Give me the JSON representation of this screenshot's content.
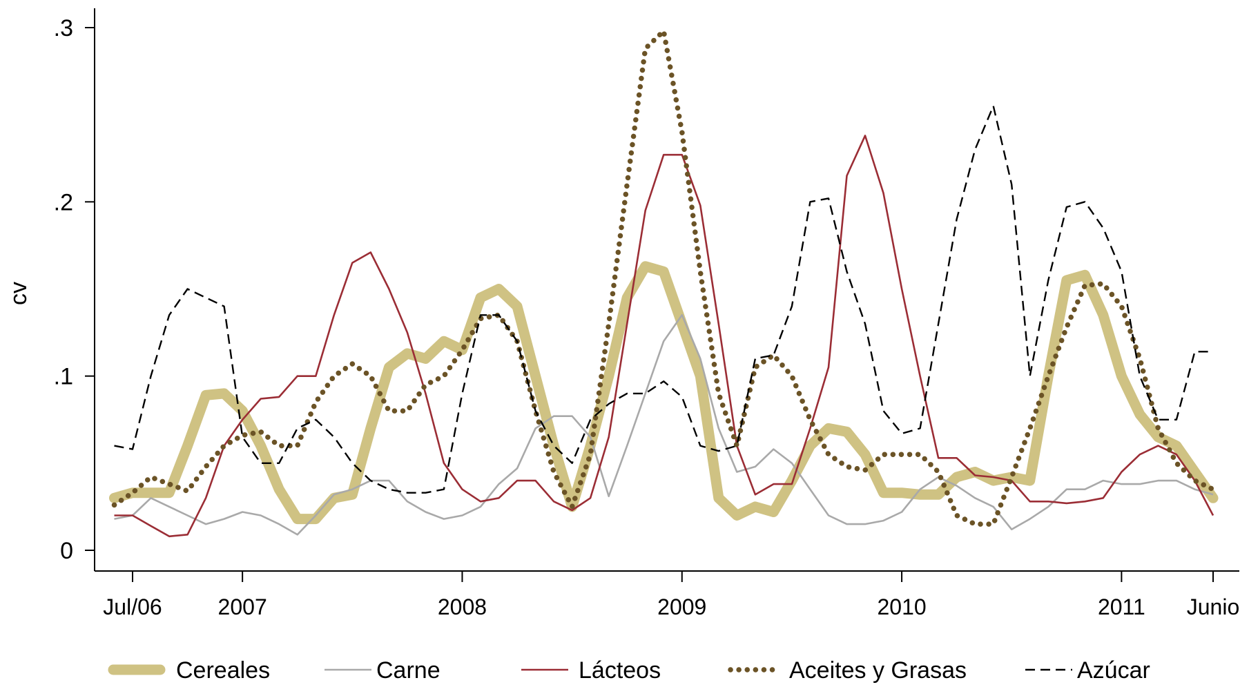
{
  "chart_data": {
    "type": "line",
    "ylabel": "cv",
    "xlabel": "",
    "ylim": [
      0,
      0.3
    ],
    "yticks": [
      {
        "value": 0,
        "label": "0"
      },
      {
        "value": 0.1,
        "label": ".1"
      },
      {
        "value": 0.2,
        "label": ".2"
      },
      {
        "value": 0.3,
        "label": ".3"
      }
    ],
    "xticks": [
      {
        "value": 0,
        "label": "Jul/06"
      },
      {
        "value": 6,
        "label": "2007"
      },
      {
        "value": 18,
        "label": "2008"
      },
      {
        "value": 30,
        "label": "2009"
      },
      {
        "value": 42,
        "label": "2010"
      },
      {
        "value": 54,
        "label": "2011"
      },
      {
        "value": 59,
        "label": "Junio"
      }
    ],
    "xrange": [
      -2,
      61
    ],
    "legend_position": "bottom",
    "grid": false,
    "series": [
      {
        "name": "Cereales",
        "style": "thick",
        "color": "#CFC283",
        "x": [
          -1,
          0,
          1,
          2,
          3,
          4,
          5,
          6,
          7,
          8,
          9,
          10,
          11,
          12,
          13,
          14,
          15,
          16,
          17,
          18,
          19,
          20,
          21,
          22,
          23,
          24,
          25,
          26,
          27,
          28,
          29,
          30,
          31,
          32,
          33,
          34,
          35,
          36,
          37,
          38,
          39,
          40,
          41,
          42,
          43,
          44,
          45,
          46,
          47,
          48,
          49,
          50,
          51,
          52,
          53,
          54,
          55,
          56,
          57,
          58,
          59
        ],
        "values": [
          0.03,
          0.033,
          0.033,
          0.033,
          0.06,
          0.089,
          0.09,
          0.08,
          0.06,
          0.035,
          0.018,
          0.018,
          0.03,
          0.032,
          0.07,
          0.105,
          0.113,
          0.11,
          0.12,
          0.115,
          0.145,
          0.15,
          0.14,
          0.1,
          0.06,
          0.025,
          0.06,
          0.1,
          0.145,
          0.163,
          0.16,
          0.13,
          0.1,
          0.03,
          0.02,
          0.025,
          0.022,
          0.04,
          0.06,
          0.07,
          0.068,
          0.055,
          0.033,
          0.033,
          0.032,
          0.032,
          0.042,
          0.045,
          0.04,
          0.042,
          0.04,
          0.1,
          0.155,
          0.158,
          0.135,
          0.1,
          0.078,
          0.065,
          0.06,
          0.045,
          0.03
        ]
      },
      {
        "name": "Carne",
        "style": "thin",
        "color": "#A9A9A9",
        "x": [
          -1,
          0,
          1,
          2,
          3,
          4,
          5,
          6,
          7,
          8,
          9,
          10,
          11,
          12,
          13,
          14,
          15,
          16,
          17,
          18,
          19,
          20,
          21,
          22,
          23,
          24,
          25,
          26,
          27,
          28,
          29,
          30,
          31,
          32,
          33,
          34,
          35,
          36,
          37,
          38,
          39,
          40,
          41,
          42,
          43,
          44,
          45,
          46,
          47,
          48,
          49,
          50,
          51,
          52,
          53,
          54,
          55,
          56,
          57,
          58,
          59
        ],
        "values": [
          0.018,
          0.02,
          0.03,
          0.025,
          0.02,
          0.015,
          0.018,
          0.022,
          0.02,
          0.015,
          0.009,
          0.02,
          0.032,
          0.035,
          0.04,
          0.04,
          0.028,
          0.022,
          0.018,
          0.02,
          0.025,
          0.038,
          0.047,
          0.07,
          0.077,
          0.077,
          0.065,
          0.031,
          0.06,
          0.09,
          0.12,
          0.135,
          0.11,
          0.07,
          0.045,
          0.048,
          0.058,
          0.05,
          0.035,
          0.02,
          0.015,
          0.015,
          0.017,
          0.022,
          0.035,
          0.042,
          0.037,
          0.03,
          0.025,
          0.012,
          0.018,
          0.025,
          0.035,
          0.035,
          0.04,
          0.038,
          0.038,
          0.04,
          0.04,
          0.035,
          0.032
        ]
      },
      {
        "name": "Lácteos",
        "style": "thin",
        "color": "#9B2D35",
        "x": [
          -1,
          0,
          1,
          2,
          3,
          4,
          5,
          6,
          7,
          8,
          9,
          10,
          11,
          12,
          13,
          14,
          15,
          16,
          17,
          18,
          19,
          20,
          21,
          22,
          23,
          24,
          25,
          26,
          27,
          28,
          29,
          30,
          31,
          32,
          33,
          34,
          35,
          36,
          37,
          38,
          39,
          40,
          41,
          42,
          43,
          44,
          45,
          46,
          47,
          48,
          49,
          50,
          51,
          52,
          53,
          54,
          55,
          56,
          57,
          58,
          59
        ],
        "values": [
          0.02,
          0.02,
          0.014,
          0.008,
          0.009,
          0.03,
          0.06,
          0.075,
          0.087,
          0.088,
          0.1,
          0.1,
          0.135,
          0.165,
          0.171,
          0.15,
          0.125,
          0.09,
          0.05,
          0.035,
          0.028,
          0.03,
          0.04,
          0.04,
          0.028,
          0.023,
          0.03,
          0.065,
          0.13,
          0.195,
          0.227,
          0.227,
          0.198,
          0.13,
          0.06,
          0.032,
          0.038,
          0.038,
          0.07,
          0.105,
          0.215,
          0.238,
          0.205,
          0.15,
          0.1,
          0.053,
          0.053,
          0.043,
          0.042,
          0.04,
          0.028,
          0.028,
          0.027,
          0.028,
          0.03,
          0.045,
          0.055,
          0.06,
          0.055,
          0.04,
          0.02
        ]
      },
      {
        "name": "Aceites y Grasas",
        "style": "dotted",
        "color": "#6B5326",
        "x": [
          -1,
          0,
          1,
          2,
          3,
          4,
          5,
          6,
          7,
          8,
          9,
          10,
          11,
          12,
          13,
          14,
          15,
          16,
          17,
          18,
          19,
          20,
          21,
          22,
          23,
          24,
          25,
          26,
          27,
          28,
          29,
          30,
          31,
          32,
          33,
          34,
          35,
          36,
          37,
          38,
          39,
          40,
          41,
          42,
          43,
          44,
          45,
          46,
          47,
          48,
          49,
          50,
          51,
          52,
          53,
          54,
          55,
          56,
          57,
          58,
          59
        ],
        "values": [
          0.026,
          0.033,
          0.042,
          0.038,
          0.034,
          0.048,
          0.06,
          0.066,
          0.068,
          0.06,
          0.06,
          0.085,
          0.1,
          0.107,
          0.1,
          0.08,
          0.08,
          0.095,
          0.1,
          0.115,
          0.133,
          0.135,
          0.12,
          0.08,
          0.045,
          0.025,
          0.055,
          0.13,
          0.21,
          0.288,
          0.298,
          0.24,
          0.16,
          0.09,
          0.06,
          0.105,
          0.112,
          0.1,
          0.075,
          0.055,
          0.048,
          0.046,
          0.055,
          0.055,
          0.055,
          0.045,
          0.02,
          0.015,
          0.015,
          0.042,
          0.07,
          0.1,
          0.128,
          0.152,
          0.153,
          0.14,
          0.11,
          0.07,
          0.05,
          0.04,
          0.035
        ]
      },
      {
        "name": "Azúcar",
        "style": "dashed",
        "color": "#000000",
        "x": [
          -1,
          0,
          1,
          2,
          3,
          4,
          5,
          6,
          7,
          8,
          9,
          10,
          11,
          12,
          13,
          14,
          15,
          16,
          17,
          18,
          19,
          20,
          21,
          22,
          23,
          24,
          25,
          26,
          27,
          28,
          29,
          30,
          31,
          32,
          33,
          34,
          35,
          36,
          37,
          38,
          39,
          40,
          41,
          42,
          43,
          44,
          45,
          46,
          47,
          48,
          49,
          50,
          51,
          52,
          53,
          54,
          55,
          56,
          57,
          58,
          59
        ],
        "values": [
          0.06,
          0.058,
          0.1,
          0.135,
          0.15,
          0.145,
          0.14,
          0.065,
          0.05,
          0.05,
          0.07,
          0.075,
          0.065,
          0.05,
          0.04,
          0.035,
          0.033,
          0.033,
          0.035,
          0.09,
          0.135,
          0.135,
          0.12,
          0.08,
          0.06,
          0.05,
          0.075,
          0.084,
          0.09,
          0.09,
          0.097,
          0.088,
          0.06,
          0.057,
          0.06,
          0.11,
          0.112,
          0.14,
          0.2,
          0.202,
          0.16,
          0.13,
          0.08,
          0.067,
          0.07,
          0.13,
          0.19,
          0.23,
          0.255,
          0.21,
          0.1,
          0.155,
          0.197,
          0.2,
          0.185,
          0.16,
          0.1,
          0.075,
          0.075,
          0.114,
          0.114
        ]
      }
    ]
  }
}
